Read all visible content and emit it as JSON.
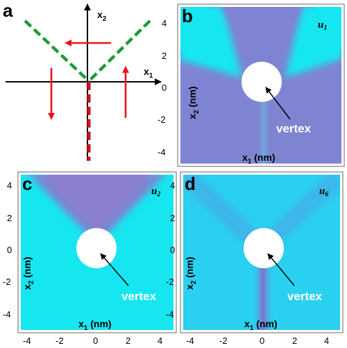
{
  "figure": {
    "panel_a": {
      "letter": "a",
      "axis_x": "x",
      "axis_x_sub": "1",
      "axis_y": "x",
      "axis_y_sub": "2"
    },
    "panels": [
      {
        "id": "b",
        "letter": "b",
        "field": "u",
        "field_sub": "1",
        "xlabel": "x",
        "xlabel_sub": "1",
        "xlabel_unit": " (nm)",
        "ylabel": "x",
        "ylabel_sub": "2",
        "ylabel_unit": " (nm)",
        "annotation": "vertex",
        "yticks": [
          "4",
          "2",
          "0",
          "-2",
          "-4"
        ],
        "xticks": []
      },
      {
        "id": "c",
        "letter": "c",
        "field": "u",
        "field_sub": "2",
        "xlabel": "x",
        "xlabel_sub": "1",
        "xlabel_unit": " (nm)",
        "ylabel": "x",
        "ylabel_sub": "2",
        "ylabel_unit": " (nm)",
        "annotation": "vertex",
        "yticks": [
          "4",
          "2",
          "0",
          "-2",
          "-4"
        ],
        "xticks": [
          "-4",
          "-2",
          "0",
          "2",
          "4"
        ]
      },
      {
        "id": "d",
        "letter": "d",
        "field": "u",
        "field_sub": "6",
        "xlabel": "x",
        "xlabel_sub": "1",
        "xlabel_unit": " (nm)",
        "ylabel": "x",
        "ylabel_sub": "2",
        "ylabel_unit": " (nm)",
        "annotation": "vertex",
        "yticks": [
          "4",
          "2",
          "0",
          "-2",
          "-4"
        ],
        "xticks": [
          "-4",
          "-2",
          "0",
          "2",
          "4"
        ]
      }
    ],
    "colors": {
      "cyan": "#16e6f0",
      "purple": "#7f84d2",
      "blue_mid": "#3cb6ea",
      "dashed_green": "#1e9b3a",
      "dashed_red": "#c8141c",
      "arrow_red": "#e8141c"
    }
  }
}
